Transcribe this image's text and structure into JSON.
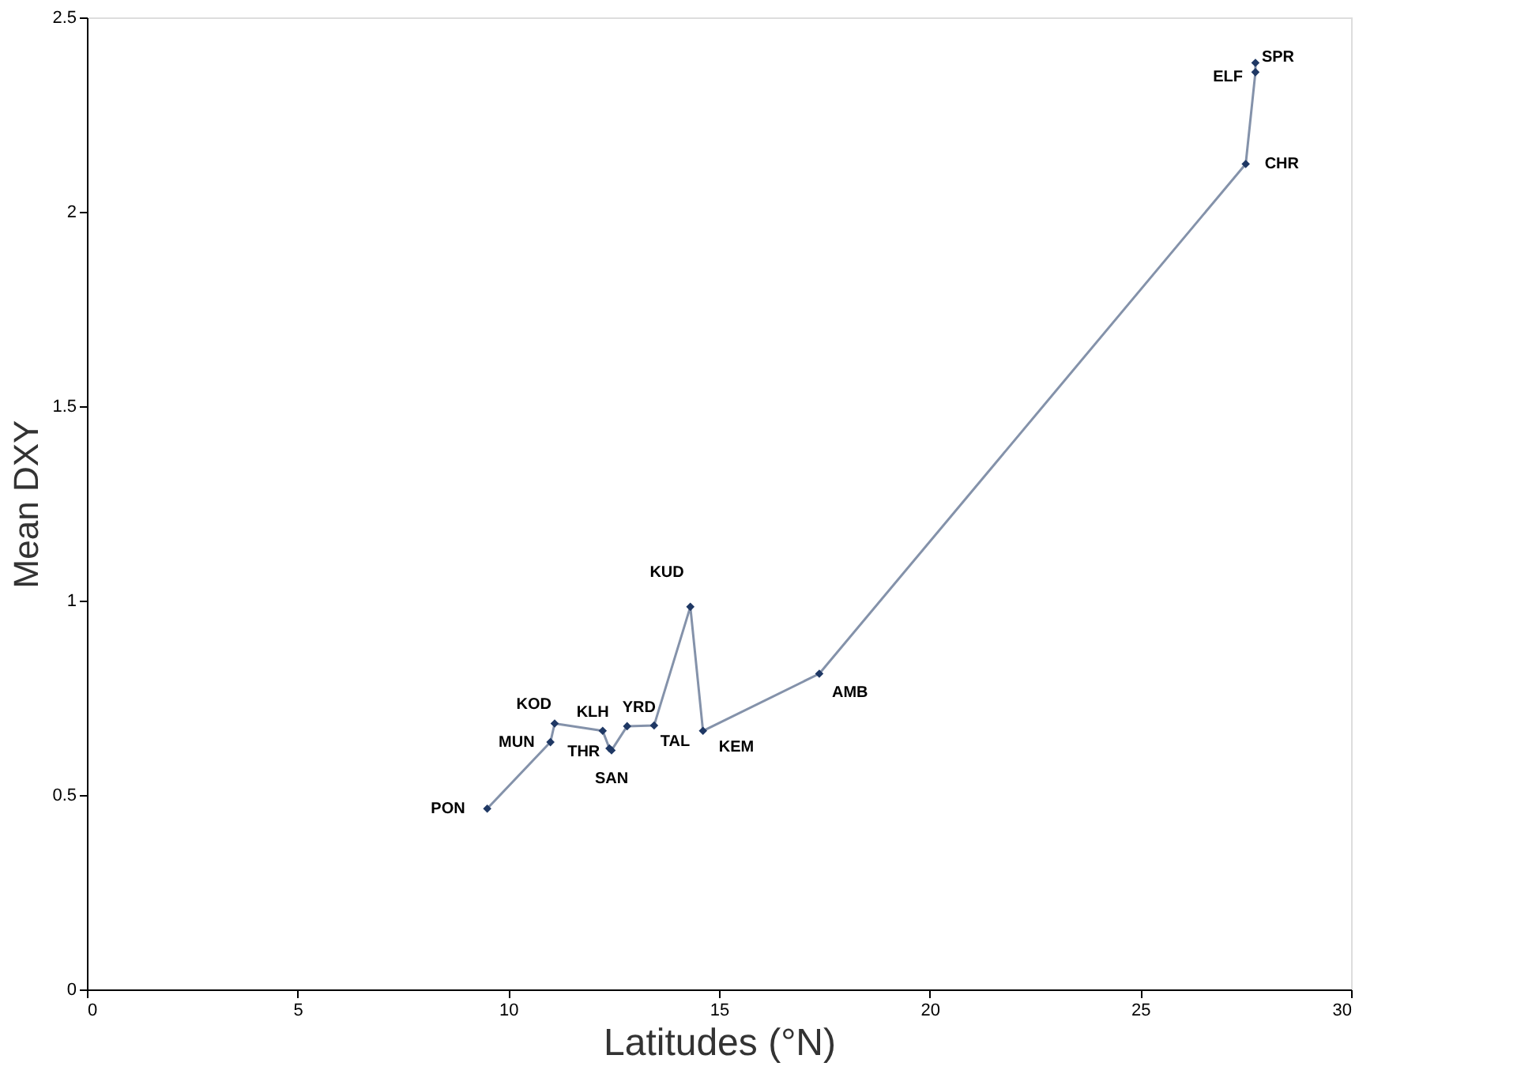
{
  "chart_data": {
    "type": "line",
    "xlabel": "Latitudes (°N)",
    "ylabel": "Mean DXY",
    "x": [
      9.5,
      11.0,
      11.1,
      12.24,
      12.4,
      12.45,
      12.82,
      13.46,
      14.32,
      14.62,
      17.38,
      27.5,
      27.73,
      27.73
    ],
    "series": [
      {
        "color": "#1f3864",
        "values": [
          0.465,
          0.636,
          0.684,
          0.665,
          0.62,
          0.615,
          0.677,
          0.679,
          0.984,
          0.665,
          0.812,
          2.123,
          2.359,
          2.383
        ]
      }
    ],
    "annotations": [
      {
        "text": "PON",
        "x": 9.5,
        "y": 0.465
      },
      {
        "text": "MUN",
        "x": 11.0,
        "y": 0.636
      },
      {
        "text": "KOD",
        "x": 11.1,
        "y": 0.684
      },
      {
        "text": "KLH",
        "x": 12.24,
        "y": 0.665
      },
      {
        "text": "THR",
        "x": 12.4,
        "y": 0.62
      },
      {
        "text": "SAN",
        "x": 12.45,
        "y": 0.615
      },
      {
        "text": "YRD",
        "x": 12.82,
        "y": 0.677
      },
      {
        "text": "TAL",
        "x": 13.46,
        "y": 0.679
      },
      {
        "text": "KUD",
        "x": 14.32,
        "y": 0.984
      },
      {
        "text": "KEM",
        "x": 14.62,
        "y": 0.665
      },
      {
        "text": "AMB",
        "x": 17.38,
        "y": 0.812
      },
      {
        "text": "CHR",
        "x": 27.5,
        "y": 2.123
      },
      {
        "text": "ELF",
        "x": 27.73,
        "y": 2.359
      },
      {
        "text": "SPR",
        "x": 27.73,
        "y": 2.383
      }
    ],
    "xlim": [
      0,
      30
    ],
    "xticks": [
      0,
      5,
      10,
      15,
      20,
      25,
      30
    ],
    "ylim": [
      0,
      2.5
    ],
    "yticks": [
      0,
      0.5,
      1,
      1.5,
      2,
      2.5
    ],
    "grid": false,
    "marker": "diamond",
    "line_style": "solid"
  }
}
